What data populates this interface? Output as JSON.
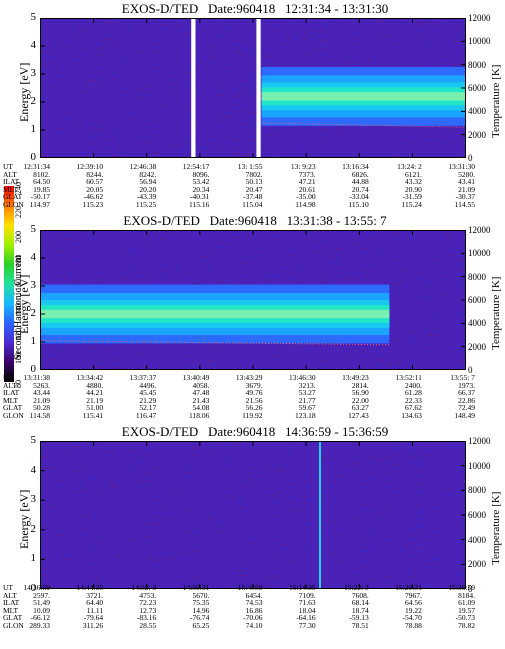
{
  "colorbar": {
    "label": "Second Harmonic Current",
    "ticks": [
      "80",
      "100",
      "120",
      "140",
      "160",
      "180",
      "200",
      "220",
      "240"
    ],
    "colors": [
      "#000000",
      "#3a0066",
      "#4b2bd0",
      "#2d63ff",
      "#18b8ff",
      "#20e0a0",
      "#28d028",
      "#a0f000",
      "#ffe000",
      "#ff8000",
      "#ff0000"
    ]
  },
  "chart_data": [
    {
      "type": "heatmap",
      "title": "EXOS-D/TED   Date:960418   12:31:34 - 13:31:30",
      "ylabel": "Energy [eV]",
      "y2label": "Temperature [K]",
      "ylim": [
        0,
        5
      ],
      "y2lim": [
        0,
        12000
      ],
      "yticks": [
        "0",
        "1",
        "2",
        "3",
        "4",
        "5"
      ],
      "y2ticks": [
        "0",
        "2000",
        "4000",
        "6000",
        "8000",
        "10000",
        "12000"
      ],
      "data_gaps_fraction": [
        [
          0.355,
          0.365
        ],
        [
          0.508,
          0.518
        ]
      ],
      "band": {
        "center_eV": 2.2,
        "segments": [
          [
            0.52,
            1.0
          ]
        ]
      },
      "table": {
        "rows": [
          "UT",
          "ALT",
          "ILAT",
          "MLT",
          "GLAT",
          "GLON"
        ],
        "columns": [
          [
            "12:31:34",
            "8102.",
            "64.50",
            "19.85",
            "-50.17",
            "114.97"
          ],
          [
            "12:39:10",
            "8244.",
            "60.57",
            "20.05",
            "-46.62",
            "115.23"
          ],
          [
            "12:46:38",
            "8242.",
            "56.94",
            "20.20",
            "-43.39",
            "115.25"
          ],
          [
            "12:54:17",
            "8096.",
            "53.42",
            "20.34",
            "-40.31",
            "115.16"
          ],
          [
            "13: 1:55",
            "7802.",
            "50.13",
            "20.47",
            "-37.48",
            "115.04"
          ],
          [
            "13: 9:23",
            "7373.",
            "47.21",
            "20.61",
            "-35.00",
            "114.98"
          ],
          [
            "13:16:34",
            "6826.",
            "44.88",
            "20.74",
            "-33.04",
            "115.10"
          ],
          [
            "13:24: 2",
            "6121.",
            "43.32",
            "20.90",
            "-31.59",
            "115.24"
          ],
          [
            "13:31:30",
            "5280.",
            "43.41",
            "21.09",
            "-30.37",
            "114.55"
          ]
        ]
      }
    },
    {
      "type": "heatmap",
      "title": "EXOS-D/TED   Date:960418   13:31:38 - 13:55: 7",
      "ylabel": "Energy [eV]",
      "y2label": "Temperature [K]",
      "ylim": [
        0,
        5
      ],
      "y2lim": [
        0,
        12000
      ],
      "yticks": [
        "0",
        "1",
        "2",
        "3",
        "4",
        "5"
      ],
      "y2ticks": [
        "0",
        "2000",
        "4000",
        "6000",
        "8000",
        "10000",
        "12000"
      ],
      "band": {
        "center_eV": 2.0,
        "segments": [
          [
            0.0,
            0.82
          ]
        ]
      },
      "table": {
        "rows": [
          "UT",
          "ALT",
          "ILAT",
          "MLT",
          "GLAT",
          "GLON"
        ],
        "columns": [
          [
            "13:31:38",
            "5263.",
            "43.44",
            "21.09",
            "50.28",
            "114.58"
          ],
          [
            "13:34:42",
            "4880.",
            "44.21",
            "21.19",
            "51.00",
            "115.41"
          ],
          [
            "13:37:37",
            "4496.",
            "45.45",
            "21.29",
            "52.17",
            "116.47"
          ],
          [
            "13:40:49",
            "4058.",
            "47.48",
            "21.43",
            "54.08",
            "118.06"
          ],
          [
            "13:43:29",
            "3679.",
            "49.76",
            "21.56",
            "56.26",
            "119.92"
          ],
          [
            "13:46:30",
            "3213.",
            "53.27",
            "21.77",
            "59.67",
            "123.18"
          ],
          [
            "13:49:23",
            "2814.",
            "56.90",
            "22.00",
            "63.27",
            "127.43"
          ],
          [
            "13:52:11",
            "2400.",
            "61.28",
            "22.33",
            "67.62",
            "134.63"
          ],
          [
            "13:55: 7",
            "1973.",
            "66.37",
            "22.86",
            "72.49",
            "148.49"
          ]
        ]
      }
    },
    {
      "type": "heatmap",
      "title": "EXOS-D/TED   Date:960418   14:36:59 - 15:36:59",
      "ylabel": "Energy [eV]",
      "y2label": "Temperature [K]",
      "ylim": [
        0,
        5
      ],
      "y2lim": [
        0,
        12000
      ],
      "yticks": [
        "0",
        "1",
        "2",
        "3",
        "4",
        "5"
      ],
      "y2ticks": [
        "0",
        "2000",
        "4000",
        "6000",
        "8000",
        "10000",
        "12000"
      ],
      "spike_fraction": 0.655,
      "table": {
        "rows": [
          "UT",
          "ALT",
          "ILAT",
          "MLT",
          "GLAT",
          "GLON"
        ],
        "columns": [
          [
            "14:36:59",
            "2597.",
            "51.49",
            "10.09",
            "-66.12",
            "289.33"
          ],
          [
            "14:44:35",
            "3721.",
            "64.40",
            "11.11",
            "-79.64",
            "311.26"
          ],
          [
            "14:52: 3",
            "4753.",
            "72.23",
            "12.73",
            "-83.16",
            "28.55"
          ],
          [
            "14:59:31",
            "5670.",
            "75.35",
            "14.96",
            "-76.74",
            "65.25"
          ],
          [
            "15: 6:59",
            "6454.",
            "74.53",
            "16.86",
            "-70.06",
            "74.10"
          ],
          [
            "15:14:35",
            "7109.",
            "71.63",
            "18.04",
            "-64.16",
            "77.30"
          ],
          [
            "15:22: 3",
            "7608.",
            "68.14",
            "18.74",
            "-59.13",
            "78.51"
          ],
          [
            "15:29:31",
            "7967.",
            "64.56",
            "19.22",
            "-54.70",
            "78.88"
          ],
          [
            "15:36:59",
            "8184.",
            "61.09",
            "19.57",
            "-50.73",
            "78.82"
          ]
        ]
      }
    }
  ]
}
